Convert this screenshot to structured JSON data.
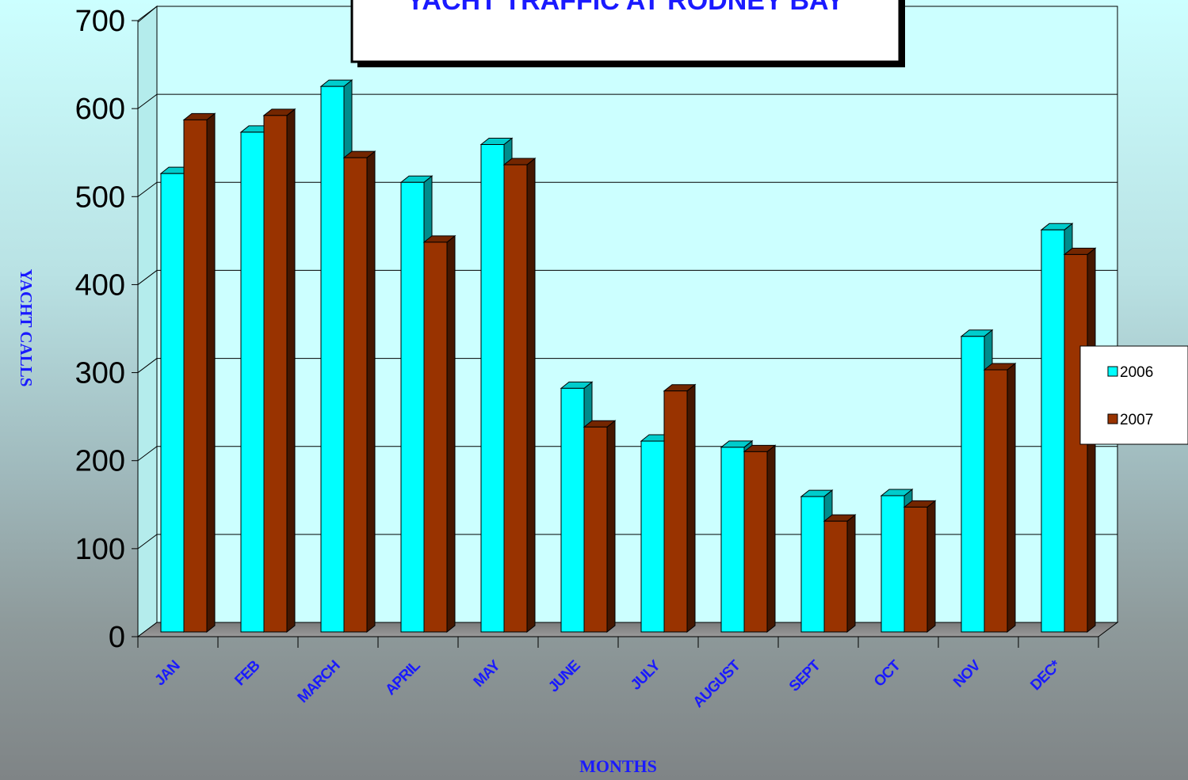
{
  "chart_data": {
    "type": "bar",
    "title": "YACHT TRAFFIC AT RODNEY BAY",
    "xlabel": "MONTHS",
    "ylabel": "YACHT CALLS",
    "ylim": [
      0,
      700
    ],
    "yticks": [
      0,
      100,
      200,
      300,
      400,
      500,
      600,
      700
    ],
    "grid": true,
    "legend": "right",
    "categories": [
      "JAN",
      "FEB",
      "MARCH",
      "APRIL",
      "MAY",
      "JUNE",
      "JULY",
      "AUGUST",
      "SEPT",
      "OCT",
      "NOV",
      "DEC*"
    ],
    "series": [
      {
        "name": "2006",
        "color": "#00ffff",
        "values": [
          510,
          557,
          609,
          500,
          543,
          266,
          206,
          199,
          143,
          144,
          325,
          446
        ]
      },
      {
        "name": "2007",
        "color": "#993300",
        "values": [
          571,
          576,
          528,
          432,
          520,
          222,
          263,
          194,
          115,
          131,
          287,
          418
        ]
      }
    ]
  }
}
